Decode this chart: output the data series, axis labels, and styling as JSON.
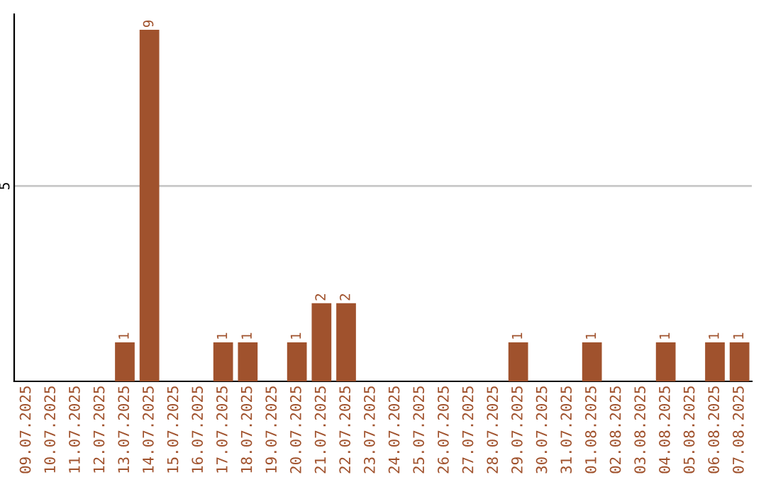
{
  "chart_data": {
    "type": "bar",
    "categories": [
      "09.07.2025",
      "10.07.2025",
      "11.07.2025",
      "12.07.2025",
      "13.07.2025",
      "14.07.2025",
      "15.07.2025",
      "16.07.2025",
      "17.07.2025",
      "18.07.2025",
      "19.07.2025",
      "20.07.2025",
      "21.07.2025",
      "22.07.2025",
      "23.07.2025",
      "24.07.2025",
      "25.07.2025",
      "26.07.2025",
      "27.07.2025",
      "28.07.2025",
      "29.07.2025",
      "30.07.2025",
      "31.07.2025",
      "01.08.2025",
      "02.08.2025",
      "03.08.2025",
      "04.08.2025",
      "05.08.2025",
      "06.08.2025",
      "07.08.2025"
    ],
    "values": [
      0,
      0,
      0,
      0,
      1,
      9,
      0,
      0,
      1,
      1,
      0,
      1,
      2,
      2,
      0,
      0,
      0,
      0,
      0,
      0,
      1,
      0,
      0,
      1,
      0,
      0,
      1,
      0,
      1,
      1
    ],
    "value_labels": [
      null,
      null,
      null,
      null,
      "1",
      "9",
      null,
      null,
      "1",
      "1",
      null,
      "1",
      "2",
      "2",
      null,
      null,
      null,
      null,
      null,
      null,
      "1",
      null,
      null,
      "1",
      null,
      null,
      "1",
      null,
      "1",
      "1"
    ],
    "color": "#a0522d",
    "ylim": [
      0,
      9.4
    ],
    "yticks": [
      5
    ],
    "grid": "y",
    "legend": false
  }
}
